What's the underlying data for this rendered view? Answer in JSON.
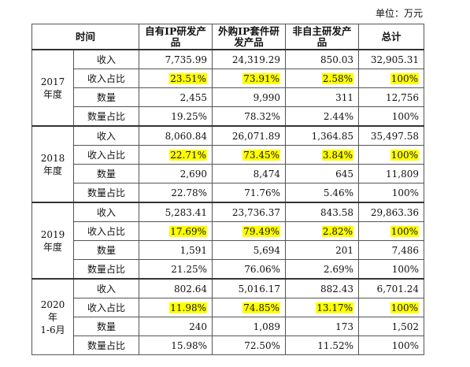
{
  "unit": "单位：万元",
  "table": {
    "header": [
      "时间",
      "自有IP研发产品",
      "外购IP套件研发产品",
      "非自主研发产品",
      "总计"
    ],
    "highlight_row": 1,
    "highlight_color": "#ffff00",
    "groups": [
      {
        "period": [
          "2017",
          "年度"
        ],
        "rows": [
          {
            "label": "收入",
            "cells": [
              "7,735.99",
              "24,319.29",
              "850.03",
              "32,905.31"
            ]
          },
          {
            "label": "收入占比",
            "cells": [
              "23.51%",
              "73.91%",
              "2.58%",
              "100%"
            ]
          },
          {
            "label": "数量",
            "cells": [
              "2,455",
              "9,990",
              "311",
              "12,756"
            ]
          },
          {
            "label": "数量占比",
            "cells": [
              "19.25%",
              "78.32%",
              "2.44%",
              "100%"
            ]
          }
        ]
      },
      {
        "period": [
          "2018",
          "年度"
        ],
        "rows": [
          {
            "label": "收入",
            "cells": [
              "8,060.84",
              "26,071.89",
              "1,364.85",
              "35,497.58"
            ]
          },
          {
            "label": "收入占比",
            "cells": [
              "22.71%",
              "73.45%",
              "3.84%",
              "100%"
            ]
          },
          {
            "label": "数量",
            "cells": [
              "2,690",
              "8,474",
              "645",
              "11,809"
            ]
          },
          {
            "label": "数量占比",
            "cells": [
              "22.78%",
              "71.76%",
              "5.46%",
              "100%"
            ]
          }
        ]
      },
      {
        "period": [
          "2019",
          "年度"
        ],
        "rows": [
          {
            "label": "收入",
            "cells": [
              "5,283.41",
              "23,736.37",
              "843.58",
              "29,863.36"
            ]
          },
          {
            "label": "收入占比",
            "cells": [
              "17.69%",
              "79.49%",
              "2.82%",
              "100%"
            ]
          },
          {
            "label": "数量",
            "cells": [
              "1,591",
              "5,694",
              "201",
              "7,486"
            ]
          },
          {
            "label": "数量占比",
            "cells": [
              "21.25%",
              "76.06%",
              "2.69%",
              "100%"
            ]
          }
        ]
      },
      {
        "period": [
          "2020年",
          "1-6月"
        ],
        "rows": [
          {
            "label": "收入",
            "cells": [
              "802.64",
              "5,016.17",
              "882.43",
              "6,701.24"
            ]
          },
          {
            "label": "收入占比",
            "cells": [
              "11.98%",
              "74.85%",
              "13.17%",
              "100%"
            ]
          },
          {
            "label": "数量",
            "cells": [
              "240",
              "1,089",
              "173",
              "1,502"
            ]
          },
          {
            "label": "数量占比",
            "cells": [
              "15.98%",
              "72.50%",
              "11.52%",
              "100%"
            ]
          }
        ]
      }
    ]
  }
}
